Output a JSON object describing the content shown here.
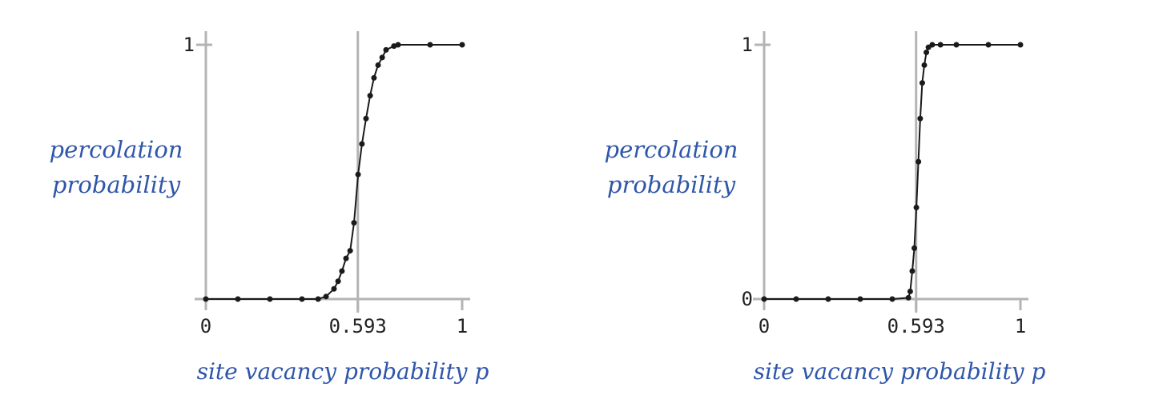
{
  "colors": {
    "label": "#2f56a8",
    "axis": "#b4b4b4",
    "curve": "#1a1a1a",
    "point": "#1a1a1a"
  },
  "chart_data": [
    {
      "type": "line",
      "ylabel": [
        "percolation",
        "probability"
      ],
      "xlabel": "site vacancy probability p",
      "xlim": [
        0,
        1
      ],
      "ylim": [
        0,
        1
      ],
      "xticks": [
        "0",
        "0.593",
        "1"
      ],
      "yticks": [
        "1"
      ],
      "threshold": 0.593,
      "points": [
        [
          0.0,
          0.0
        ],
        [
          0.125,
          0.0
        ],
        [
          0.25,
          0.0
        ],
        [
          0.375,
          0.0
        ],
        [
          0.438,
          0.0
        ],
        [
          0.469,
          0.01
        ],
        [
          0.5,
          0.04
        ],
        [
          0.516,
          0.07
        ],
        [
          0.531,
          0.11
        ],
        [
          0.547,
          0.16
        ],
        [
          0.563,
          0.19
        ],
        [
          0.578,
          0.3
        ],
        [
          0.594,
          0.49
        ],
        [
          0.609,
          0.61
        ],
        [
          0.625,
          0.71
        ],
        [
          0.641,
          0.8
        ],
        [
          0.656,
          0.87
        ],
        [
          0.672,
          0.92
        ],
        [
          0.688,
          0.95
        ],
        [
          0.703,
          0.98
        ],
        [
          0.734,
          0.995
        ],
        [
          0.75,
          1.0
        ],
        [
          0.875,
          1.0
        ],
        [
          1.0,
          1.0
        ]
      ]
    },
    {
      "type": "line",
      "ylabel": [
        "percolation",
        "probability"
      ],
      "xlabel": "site vacancy probability p",
      "xlim": [
        0,
        1
      ],
      "ylim": [
        0,
        1
      ],
      "xticks": [
        "0",
        "0.593",
        "1"
      ],
      "yticks": [
        "0",
        "1"
      ],
      "threshold": 0.593,
      "points": [
        [
          0.0,
          0.0
        ],
        [
          0.125,
          0.0
        ],
        [
          0.25,
          0.0
        ],
        [
          0.375,
          0.0
        ],
        [
          0.5,
          0.0
        ],
        [
          0.563,
          0.005
        ],
        [
          0.57,
          0.03
        ],
        [
          0.578,
          0.11
        ],
        [
          0.586,
          0.2
        ],
        [
          0.594,
          0.36
        ],
        [
          0.602,
          0.54
        ],
        [
          0.609,
          0.71
        ],
        [
          0.617,
          0.85
        ],
        [
          0.625,
          0.92
        ],
        [
          0.633,
          0.97
        ],
        [
          0.641,
          0.99
        ],
        [
          0.656,
          1.0
        ],
        [
          0.688,
          1.0
        ],
        [
          0.75,
          1.0
        ],
        [
          0.875,
          1.0
        ],
        [
          1.0,
          1.0
        ]
      ]
    }
  ]
}
